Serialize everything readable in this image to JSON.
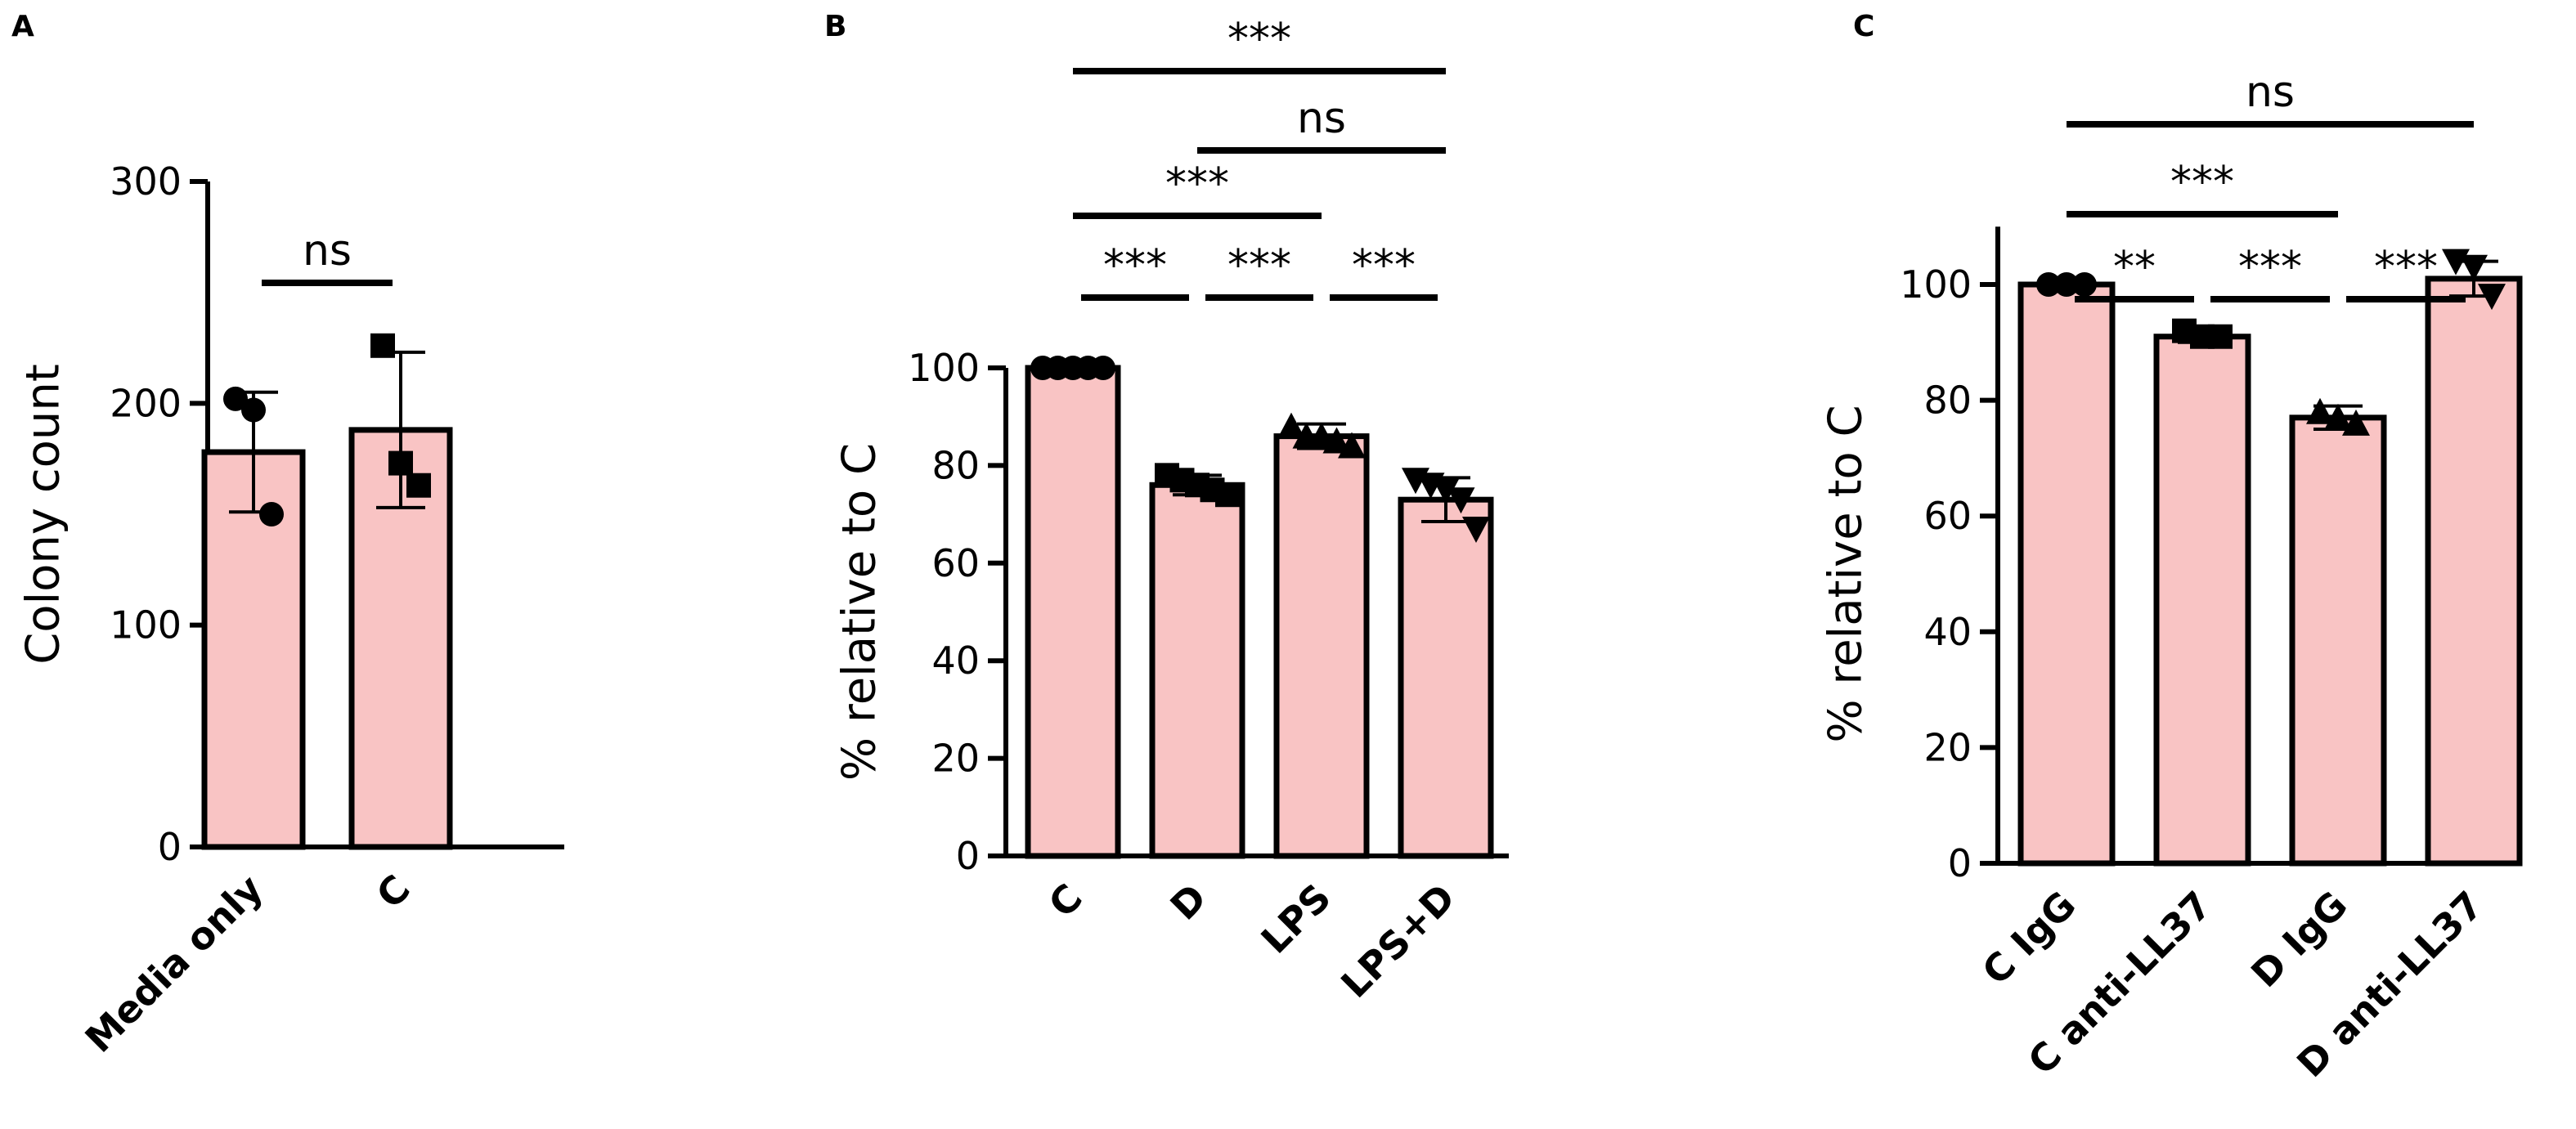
{
  "chart_data": [
    {
      "panel": "A",
      "type": "bar",
      "title": "",
      "xlabel": "",
      "ylabel": "Colony count",
      "ylim": [
        0,
        300
      ],
      "yticks": [
        0,
        100,
        200,
        300
      ],
      "bar_color": "#f9c4c4",
      "categories": [
        "Media only",
        "C"
      ],
      "values": [
        178,
        188
      ],
      "sd": [
        27,
        35
      ],
      "markers": [
        "circle",
        "square"
      ],
      "points": [
        [
          202,
          197,
          150
        ],
        [
          226,
          173,
          163
        ]
      ],
      "comparisons": [
        {
          "from": 0,
          "to": 1,
          "label": "ns"
        }
      ]
    },
    {
      "panel": "B",
      "type": "bar",
      "title": "",
      "xlabel": "",
      "ylabel": "% relative to C",
      "ylim": [
        0,
        100
      ],
      "yticks": [
        0,
        20,
        40,
        60,
        80,
        100
      ],
      "bar_color": "#f9c4c4",
      "categories": [
        "C",
        "D",
        "LPS",
        "LPS+D"
      ],
      "values": [
        100,
        76,
        86,
        73
      ],
      "sd": [
        0.5,
        2,
        2.5,
        4.5
      ],
      "markers": [
        "circle",
        "square",
        "triangle",
        "triangle-down"
      ],
      "points": [
        [
          100,
          100,
          100,
          100,
          100
        ],
        [
          78,
          77,
          76,
          75,
          74
        ],
        [
          88,
          86,
          86,
          85,
          84
        ],
        [
          77,
          76,
          75,
          73,
          67
        ]
      ],
      "comparisons": [
        {
          "from": 0,
          "to": 1,
          "label": "***"
        },
        {
          "from": 1,
          "to": 2,
          "label": "***"
        },
        {
          "from": 2,
          "to": 3,
          "label": "***"
        },
        {
          "from": 0,
          "to": 2,
          "label": "***"
        },
        {
          "from": 1,
          "to": 3,
          "label": "ns"
        },
        {
          "from": 0,
          "to": 3,
          "label": "***"
        }
      ]
    },
    {
      "panel": "C",
      "type": "bar",
      "title": "",
      "xlabel": "",
      "ylabel": "% relative to C",
      "ylim": [
        0,
        110
      ],
      "yticks": [
        0,
        20,
        40,
        60,
        80,
        100
      ],
      "bar_color": "#f9c4c4",
      "categories": [
        "C IgG",
        "C anti-LL37",
        "D IgG",
        "D anti-LL37"
      ],
      "values": [
        100,
        91,
        77,
        101
      ],
      "sd": [
        0.5,
        1,
        2,
        3
      ],
      "markers": [
        "circle",
        "square",
        "triangle",
        "triangle-down"
      ],
      "points": [
        [
          100,
          100,
          100
        ],
        [
          92,
          91,
          91
        ],
        [
          78,
          77,
          76
        ],
        [
          104,
          103,
          98
        ]
      ],
      "comparisons": [
        {
          "from": 0,
          "to": 1,
          "label": "**"
        },
        {
          "from": 1,
          "to": 2,
          "label": "***"
        },
        {
          "from": 2,
          "to": 3,
          "label": "***"
        },
        {
          "from": 0,
          "to": 2,
          "label": "***"
        },
        {
          "from": 0,
          "to": 3,
          "label": "ns"
        }
      ]
    }
  ]
}
